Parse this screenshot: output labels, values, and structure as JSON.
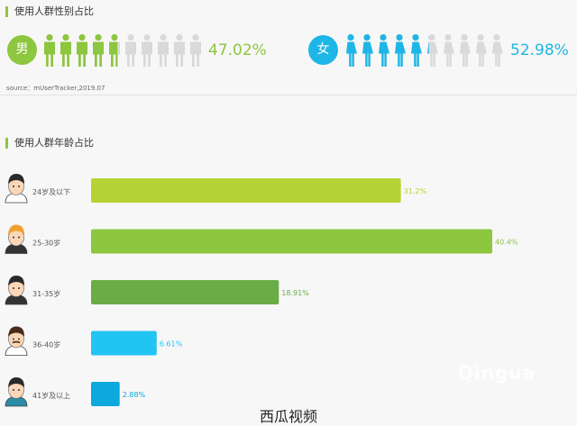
{
  "gender": {
    "title": "使用人群性别占比",
    "male": {
      "label": "男",
      "percent_text": "47.02%",
      "percent": 47.02,
      "color": "#8dc63f",
      "icon": "male-figure-icon"
    },
    "female": {
      "label": "女",
      "percent_text": "52.98%",
      "percent": 52.98,
      "color": "#1eb6e6",
      "icon": "female-figure-icon"
    },
    "source": "source：mUserTracker,2019.07"
  },
  "age": {
    "title": "使用人群年龄占比"
  },
  "watermark": {
    "text": "西瓜视频",
    "logo_text": "Qingua"
  },
  "chart_data": {
    "type": "bar",
    "orientation": "horizontal",
    "title": "使用人群年龄占比",
    "categories": [
      "24岁及以下",
      "25-30岁",
      "31-35岁",
      "36-40岁",
      "41岁及以上"
    ],
    "values": [
      31.2,
      40.4,
      18.91,
      6.61,
      2.88
    ],
    "value_labels": [
      "31.2%",
      "40.4%",
      "18.91%",
      "6.61%",
      "2.88%"
    ],
    "colors": [
      "#b5d334",
      "#8dc63f",
      "#6aac46",
      "#22c4f2",
      "#0ca8de"
    ],
    "avatar_icons": [
      "young-man-avatar-icon",
      "blond-man-avatar-icon",
      "suit-man-avatar-icon",
      "mustache-man-avatar-icon",
      "older-man-avatar-icon"
    ],
    "xlim": [
      0,
      40.4
    ],
    "grid": false,
    "legend": "none"
  }
}
